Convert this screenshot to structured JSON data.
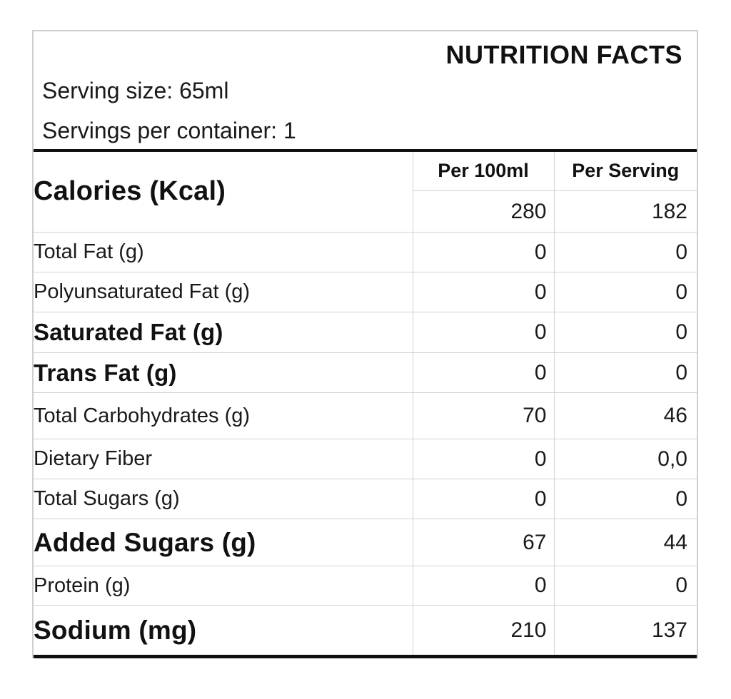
{
  "meta": {
    "background_color": "#ffffff",
    "text_color": "#151515",
    "grid_line_color": "#d2d2d2",
    "thick_rule_color": "#101010"
  },
  "header": {
    "title": "NUTRITION FACTS",
    "serving_size": "Serving size: 65ml",
    "servings_per_container": "Servings per container: 1"
  },
  "table": {
    "columns": [
      "Per 100ml",
      "Per Serving"
    ],
    "calories": {
      "label": "Calories (Kcal)",
      "per_100ml": "280",
      "per_serving": "182"
    },
    "rows": [
      {
        "label": "Total Fat (g)",
        "per_100ml": "0",
        "per_serving": "0"
      },
      {
        "label": "Polyunsaturated Fat (g)",
        "per_100ml": "0",
        "per_serving": "0"
      },
      {
        "label": "Saturated Fat (g)",
        "per_100ml": "0",
        "per_serving": "0"
      },
      {
        "label": "Trans Fat (g)",
        "per_100ml": "0",
        "per_serving": "0"
      },
      {
        "label": "Total Carbohydrates (g)",
        "per_100ml": "70",
        "per_serving": "46"
      },
      {
        "label": "Dietary Fiber",
        "per_100ml": "0",
        "per_serving": "0,0"
      },
      {
        "label": "Total Sugars (g)",
        "per_100ml": "0",
        "per_serving": "0"
      },
      {
        "label": "Added Sugars (g)",
        "per_100ml": "67",
        "per_serving": "44"
      },
      {
        "label": "Protein (g)",
        "per_100ml": "0",
        "per_serving": "0"
      },
      {
        "label": "Sodium (mg)",
        "per_100ml": "210",
        "per_serving": "137"
      }
    ]
  }
}
